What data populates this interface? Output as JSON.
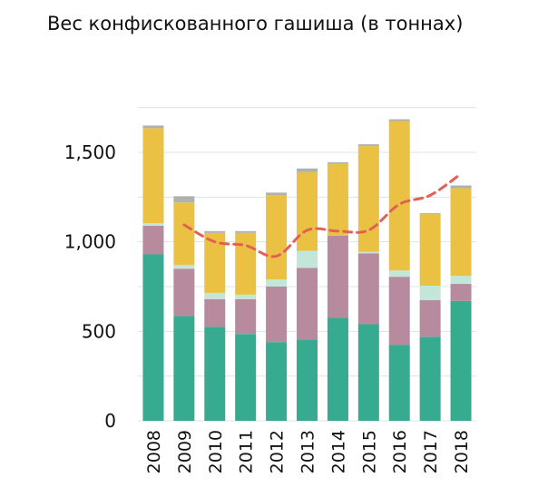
{
  "chart_data": {
    "type": "bar",
    "stacked": true,
    "title": "Вес конфискованного гашиша (в тоннах)",
    "categories": [
      "2008",
      "2009",
      "2010",
      "2011",
      "2012",
      "2013",
      "2014",
      "2015",
      "2016",
      "2017",
      "2018"
    ],
    "ylim": [
      0,
      1800
    ],
    "yticks": [
      0,
      500,
      1000,
      1500
    ],
    "ytick_labels": [
      "0",
      "500",
      "1,000",
      "1,500"
    ],
    "grid": true,
    "legend": "none",
    "series": [
      {
        "color": "#36ab8f",
        "values": [
          930,
          585,
          525,
          485,
          440,
          455,
          575,
          540,
          425,
          470,
          670
        ]
      },
      {
        "color": "#b88a9e",
        "values": [
          160,
          265,
          155,
          195,
          310,
          400,
          460,
          395,
          380,
          205,
          95
        ]
      },
      {
        "color": "#c2e6d8",
        "values": [
          15,
          20,
          35,
          25,
          40,
          95,
          0,
          10,
          35,
          80,
          45
        ]
      },
      {
        "color": "#ebc143",
        "values": [
          530,
          350,
          335,
          345,
          470,
          440,
          400,
          590,
          835,
          400,
          490
        ]
      },
      {
        "color": "#aeb1ad",
        "values": [
          15,
          35,
          10,
          10,
          15,
          20,
          10,
          10,
          10,
          5,
          15
        ]
      }
    ],
    "trend_line": {
      "color": "#e36057",
      "style": "dashed",
      "categories": [
        "2009",
        "2010",
        "2011",
        "2012",
        "2013",
        "2014",
        "2015",
        "2016",
        "2017",
        "2018"
      ],
      "values": [
        1095,
        1000,
        980,
        920,
        1065,
        1060,
        1065,
        1210,
        1260,
        1380
      ]
    }
  }
}
